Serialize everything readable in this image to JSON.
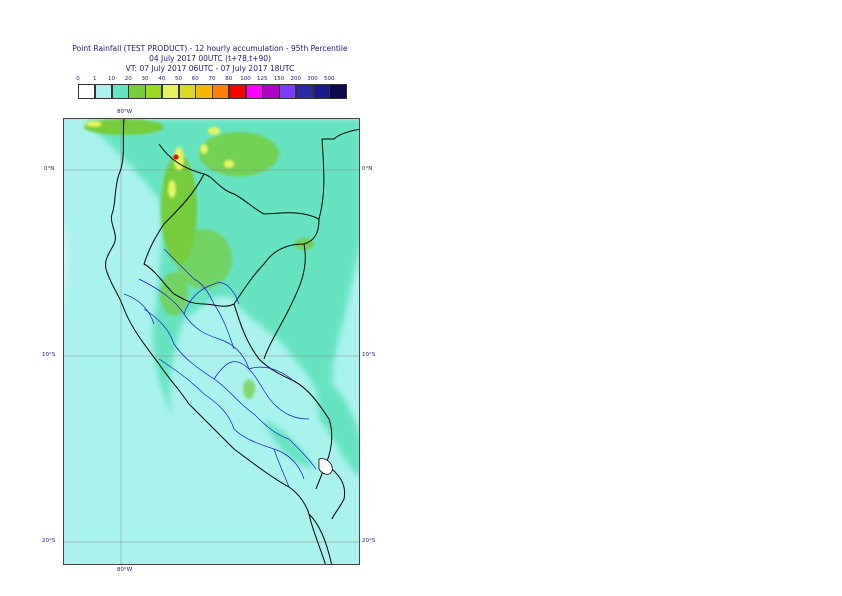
{
  "header": {
    "line1": "Point Rainfall (TEST PRODUCT) - 12 hourly accumulation - 95th Percentile",
    "line2": "04 July 2017 00UTC (t+78,t+90)",
    "line3": "VT: 07 July 2017 06UTC - 07 July 2017 18UTC"
  },
  "legend": {
    "ticks": [
      "0",
      "1",
      "10",
      "20",
      "30",
      "40",
      "50",
      "60",
      "70",
      "80",
      "100",
      "125",
      "150",
      "200",
      "300",
      "500"
    ],
    "colors": [
      "#ffffff",
      "#aaf2ee",
      "#66e4c2",
      "#76cc3a",
      "#9bd91e",
      "#e6f55e",
      "#d9d924",
      "#f5b800",
      "#ff7f00",
      "#ff0000",
      "#ff00ff",
      "#b300c8",
      "#7b3cff",
      "#2c2ca8",
      "#1a1a8c",
      "#0a0a50"
    ]
  },
  "map": {
    "lat_labels": [
      "0°N",
      "10°S",
      "20°S"
    ],
    "lon_labels": [
      "80°W",
      "80°W"
    ]
  }
}
